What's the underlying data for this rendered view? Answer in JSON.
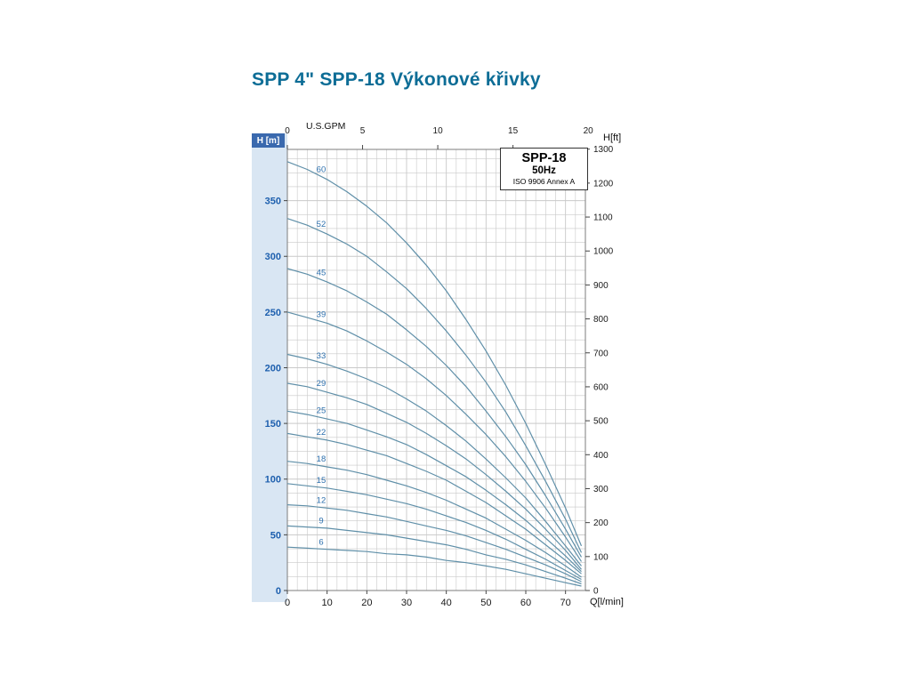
{
  "page": {
    "title": "SPP 4\" SPP-18 Výkonové křivky"
  },
  "legend": {
    "model": "SPP-18",
    "frequency": "50Hz",
    "standard": "ISO 9906 Annex A"
  },
  "axes": {
    "left": {
      "unit": "H [m]",
      "ticks": [
        0,
        50,
        100,
        150,
        200,
        250,
        300,
        350
      ]
    },
    "right": {
      "unit": "H[ft]",
      "ticks": [
        0,
        100,
        200,
        300,
        400,
        500,
        600,
        700,
        800,
        900,
        1000,
        1100,
        1200,
        1300
      ]
    },
    "bottom": {
      "unit": "Q[l/min]",
      "ticks": [
        0,
        10,
        20,
        30,
        40,
        50,
        60,
        70
      ]
    },
    "top": {
      "unit": "U.S.GPM",
      "ticks": [
        0,
        5,
        10,
        15,
        20
      ]
    }
  },
  "chart_data": {
    "type": "line",
    "title": "SPP-18 50Hz pump performance curves (head vs. flow, per number of stages)",
    "xlabel": "Q [l/min]",
    "ylabel": "H [m]",
    "x2label": "U.S.GPM",
    "y2label": "H [ft]",
    "xlim": [
      0,
      75
    ],
    "ylim": [
      0,
      396
    ],
    "grid": true,
    "x_lmin": [
      0,
      5,
      10,
      15,
      20,
      25,
      30,
      35,
      40,
      45,
      50,
      55,
      60,
      65,
      70,
      74
    ],
    "series": [
      {
        "name": "60",
        "h_m": [
          385,
          378,
          369,
          358,
          345,
          330,
          312,
          292,
          269,
          243,
          215,
          184,
          150,
          113,
          74,
          40
        ]
      },
      {
        "name": "52",
        "h_m": [
          334,
          328,
          320,
          311,
          300,
          286,
          271,
          253,
          233,
          211,
          187,
          160,
          130,
          98,
          64,
          34
        ]
      },
      {
        "name": "45",
        "h_m": [
          289,
          284,
          277,
          269,
          259,
          248,
          234,
          219,
          202,
          183,
          161,
          138,
          113,
          85,
          55,
          30
        ]
      },
      {
        "name": "39",
        "h_m": [
          250,
          245,
          240,
          233,
          224,
          214,
          203,
          190,
          175,
          158,
          140,
          120,
          98,
          74,
          48,
          26
        ]
      },
      {
        "name": "33",
        "h_m": [
          212,
          208,
          203,
          197,
          190,
          182,
          172,
          161,
          148,
          134,
          118,
          101,
          83,
          62,
          40,
          22
        ]
      },
      {
        "name": "29",
        "h_m": [
          186,
          183,
          178,
          173,
          167,
          159,
          151,
          141,
          130,
          118,
          104,
          89,
          73,
          55,
          36,
          19
        ]
      },
      {
        "name": "25",
        "h_m": [
          161,
          158,
          154,
          150,
          144,
          138,
          131,
          122,
          112,
          102,
          90,
          77,
          63,
          47,
          31,
          17
        ]
      },
      {
        "name": "22",
        "h_m": [
          141,
          138,
          135,
          131,
          126,
          121,
          114,
          107,
          99,
          89,
          79,
          67,
          55,
          41,
          27,
          15
        ]
      },
      {
        "name": "18",
        "h_m": [
          116,
          114,
          111,
          108,
          104,
          99,
          94,
          88,
          81,
          73,
          65,
          55,
          45,
          34,
          22,
          12
        ]
      },
      {
        "name": "15",
        "h_m": [
          96,
          94,
          92,
          89,
          86,
          82,
          78,
          73,
          67,
          61,
          54,
          46,
          37,
          28,
          18,
          10
        ]
      },
      {
        "name": "12",
        "h_m": [
          77,
          76,
          74,
          72,
          69,
          66,
          62,
          58,
          54,
          49,
          43,
          37,
          30,
          23,
          15,
          8
        ]
      },
      {
        "name": "9",
        "h_m": [
          58,
          57,
          56,
          54,
          52,
          50,
          47,
          44,
          41,
          37,
          32,
          28,
          23,
          17,
          11,
          6
        ]
      },
      {
        "name": "6",
        "h_m": [
          39,
          38,
          37,
          36,
          35,
          33,
          32,
          30,
          27,
          25,
          22,
          19,
          15,
          11,
          7,
          4
        ]
      }
    ]
  },
  "colors": {
    "title": "#0d6d96",
    "axis_blue": "#1d5fae",
    "axis_strip": "#d9e6f3",
    "axis_strip_header_bg": "#3a69ae",
    "grid": "#c9c9c9",
    "plot_border": "#7d7d7d",
    "curve": "#5f8fa8",
    "curve_label": "#2c6fad",
    "tick_text": "#1a1a1a"
  }
}
